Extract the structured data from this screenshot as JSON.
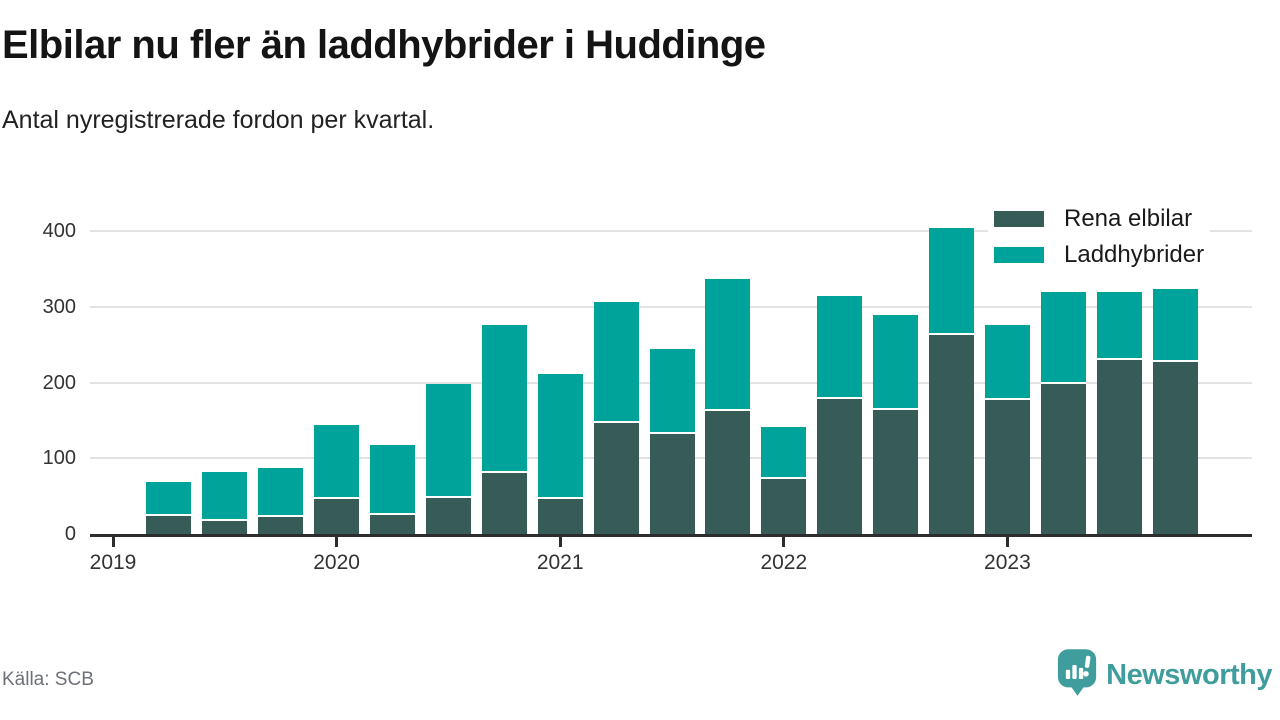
{
  "header": {
    "title": "Elbilar nu fler än laddhybrider i Huddinge",
    "subtitle": "Antal nyregistrerade fordon per kvartal."
  },
  "legend": {
    "items": [
      {
        "label": "Rena elbilar",
        "color": "#375b56"
      },
      {
        "label": "Laddhybrider",
        "color": "#00a39a"
      }
    ]
  },
  "footer": {
    "source": "Källa: SCB",
    "brand": "Newsworthy",
    "brand_color": "#3f9e9d"
  },
  "chart_data": {
    "type": "bar",
    "stacked": true,
    "title": "Elbilar nu fler än laddhybrider i Huddinge",
    "subtitle": "Antal nyregistrerade fordon per kvartal.",
    "x": [
      "2019 K1",
      "2019 K2",
      "2019 K3",
      "2019 K4",
      "2020 K1",
      "2020 K2",
      "2020 K3",
      "2020 K4",
      "2021 K1",
      "2021 K2",
      "2021 K3",
      "2021 K4",
      "2022 K1",
      "2022 K2",
      "2022 K3",
      "2022 K4",
      "2023 K1",
      "2023 K2",
      "2023 K3",
      "2023 K4"
    ],
    "series": [
      {
        "name": "Rena elbilar",
        "color": "#375b56",
        "values": [
          null,
          26,
          20,
          25,
          49,
          28,
          50,
          83,
          49,
          149,
          135,
          165,
          75,
          181,
          166,
          265,
          180,
          201,
          232,
          230
        ]
      },
      {
        "name": "Laddhybrider",
        "color": "#00a39a",
        "values": [
          null,
          43,
          62,
          62,
          95,
          90,
          148,
          193,
          162,
          157,
          109,
          172,
          66,
          133,
          123,
          139,
          96,
          119,
          88,
          93
        ]
      }
    ],
    "totals": [
      null,
      69,
      82,
      87,
      144,
      118,
      198,
      276,
      211,
      306,
      244,
      337,
      141,
      314,
      289,
      404,
      276,
      320,
      320,
      323
    ],
    "x_tick_labels": [
      "2019",
      "2020",
      "2021",
      "2022",
      "2023"
    ],
    "x_tick_every": 4,
    "yticks": [
      0,
      100,
      200,
      300,
      400
    ],
    "ylim": [
      0,
      430
    ],
    "grid": "horizontal",
    "legend_position": "top-right",
    "source": "Källa: SCB"
  }
}
